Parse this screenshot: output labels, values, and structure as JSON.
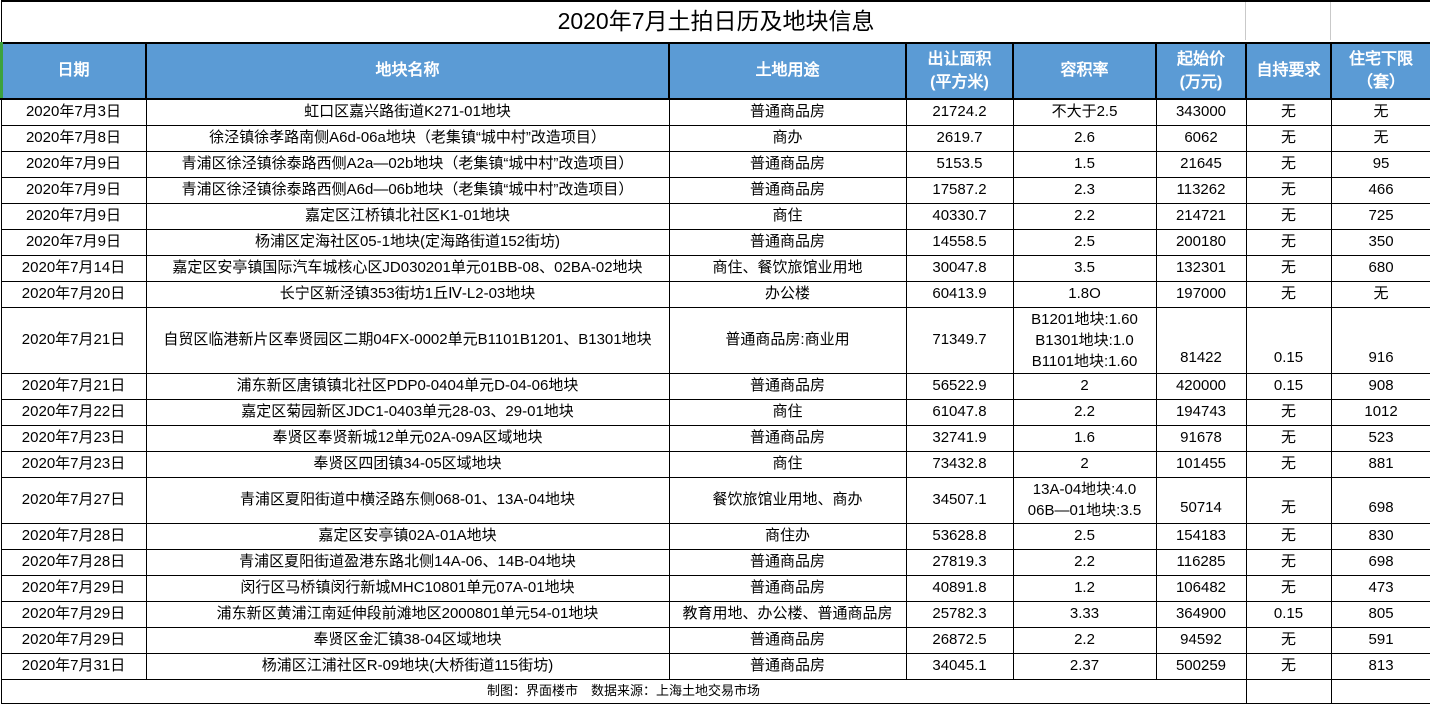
{
  "title": "2020年7月土拍日历及地块信息",
  "footer": "制图：界面楼市　数据来源：上海土地交易市场",
  "colors": {
    "header_bg": "#5B9BD5",
    "header_text": "#FFFFFF",
    "border": "#000000",
    "accent_green": "#3DA23D"
  },
  "columns": [
    {
      "label": "日期",
      "sub": ""
    },
    {
      "label": "地块名称",
      "sub": ""
    },
    {
      "label": "土地用途",
      "sub": ""
    },
    {
      "label": "出让面积",
      "sub": "(平方米)"
    },
    {
      "label": "容积率",
      "sub": ""
    },
    {
      "label": "起始价",
      "sub": "(万元)"
    },
    {
      "label": "自持要求",
      "sub": ""
    },
    {
      "label": "住宅下限",
      "sub": "（套）"
    }
  ],
  "rows": [
    {
      "date": "2020年7月3日",
      "name": "虹口区嘉兴路街道K271-01地块",
      "use": "普通商品房",
      "area": "21724.2",
      "far": "不大于2.5",
      "price": "343000",
      "self_hold": "无",
      "min_units": "无"
    },
    {
      "date": "2020年7月8日",
      "name": "徐泾镇徐孝路南侧A6d-06a地块（老集镇“城中村”改造项目）",
      "use": "商办",
      "area": "2619.7",
      "far": "2.6",
      "price": "6062",
      "self_hold": "无",
      "min_units": "无"
    },
    {
      "date": "2020年7月9日",
      "name": "青浦区徐泾镇徐泰路西侧A2a—02b地块（老集镇“城中村”改造项目）",
      "use": "普通商品房",
      "area": "5153.5",
      "far": "1.5",
      "price": "21645",
      "self_hold": "无",
      "min_units": "95"
    },
    {
      "date": "2020年7月9日",
      "name": "青浦区徐泾镇徐泰路西侧A6d—06b地块（老集镇“城中村”改造项目）",
      "use": "普通商品房",
      "area": "17587.2",
      "far": "2.3",
      "price": "113262",
      "self_hold": "无",
      "min_units": "466"
    },
    {
      "date": "2020年7月9日",
      "name": "嘉定区江桥镇北社区K1-01地块",
      "use": "商住",
      "area": "40330.7",
      "far": "2.2",
      "price": "214721",
      "self_hold": "无",
      "min_units": "725"
    },
    {
      "date": "2020年7月9日",
      "name": "杨浦区定海社区05-1地块(定海路街道152街坊)",
      "use": "普通商品房",
      "area": "14558.5",
      "far": "2.5",
      "price": "200180",
      "self_hold": "无",
      "min_units": "350"
    },
    {
      "date": "2020年7月14日",
      "name": "嘉定区安亭镇国际汽车城核心区JD030201单元01BB-08、02BA-02地块",
      "use": "商住、餐饮旅馆业用地",
      "area": "30047.8",
      "far": "3.5",
      "price": "132301",
      "self_hold": "无",
      "min_units": "680"
    },
    {
      "date": "2020年7月20日",
      "name": "长宁区新泾镇353街坊1丘Ⅳ-L2-03地块",
      "use": "办公楼",
      "area": "60413.9",
      "far": "1.8O",
      "price": "197000",
      "self_hold": "无",
      "min_units": "无"
    },
    {
      "date": "2020年7月21日",
      "name": "自贸区临港新片区奉贤园区二期04FX-0002单元B1101B1201、B1301地块",
      "use": "普通商品房:商业用",
      "area": "71349.7",
      "far": [
        "B1201地块:1.60",
        "B1301地块:1.0",
        "B1101地块:1.60"
      ],
      "price": "81422",
      "self_hold": "0.15",
      "min_units": "916"
    },
    {
      "date": "2020年7月21日",
      "name": "浦东新区唐镇镇北社区PDP0-0404单元D-04-06地块",
      "use": "普通商品房",
      "area": "56522.9",
      "far": "2",
      "price": "420000",
      "self_hold": "0.15",
      "min_units": "908"
    },
    {
      "date": "2020年7月22日",
      "name": "嘉定区菊园新区JDC1-0403单元28-03、29-01地块",
      "use": "商住",
      "area": "61047.8",
      "far": "2.2",
      "price": "194743",
      "self_hold": "无",
      "min_units": "1012"
    },
    {
      "date": "2020年7月23日",
      "name": "奉贤区奉贤新城12单元02A-09A区域地块",
      "use": "普通商品房",
      "area": "32741.9",
      "far": "1.6",
      "price": "91678",
      "self_hold": "无",
      "min_units": "523"
    },
    {
      "date": "2020年7月23日",
      "name": "奉贤区四团镇34-05区域地块",
      "use": "商住",
      "area": "73432.8",
      "far": "2",
      "price": "101455",
      "self_hold": "无",
      "min_units": "881"
    },
    {
      "date": "2020年7月27日",
      "name": "青浦区夏阳街道中横泾路东侧068-01、13A-04地块",
      "use": "餐饮旅馆业用地、商办",
      "area": "34507.1",
      "far": [
        "13A-04地块:4.0",
        "06B—01地块:3.5"
      ],
      "price": "50714",
      "self_hold": "无",
      "min_units": "698"
    },
    {
      "date": "2020年7月28日",
      "name": "嘉定区安亭镇02A-01A地块",
      "use": "商住办",
      "area": "53628.8",
      "far": "2.5",
      "price": "154183",
      "self_hold": "无",
      "min_units": "830"
    },
    {
      "date": "2020年7月28日",
      "name": "青浦区夏阳街道盈港东路北侧14A-06、14B-04地块",
      "use": "普通商品房",
      "area": "27819.3",
      "far": "2.2",
      "price": "116285",
      "self_hold": "无",
      "min_units": "698"
    },
    {
      "date": "2020年7月29日",
      "name": "闵行区马桥镇闵行新城MHC10801单元07A-01地块",
      "use": "普通商品房",
      "area": "40891.8",
      "far": "1.2",
      "price": "106482",
      "self_hold": "无",
      "min_units": "473"
    },
    {
      "date": "2020年7月29日",
      "name": "浦东新区黄浦江南延伸段前滩地区2000801单元54-01地块",
      "use": "教育用地、办公楼、普通商品房",
      "area": "25782.3",
      "far": "3.33",
      "price": "364900",
      "self_hold": "0.15",
      "min_units": "805"
    },
    {
      "date": "2020年7月29日",
      "name": "奉贤区金汇镇38-04区域地块",
      "use": "普通商品房",
      "area": "26872.5",
      "far": "2.2",
      "price": "94592",
      "self_hold": "无",
      "min_units": "591"
    },
    {
      "date": "2020年7月31日",
      "name": "杨浦区江浦社区R-09地块(大桥街道115街坊)",
      "use": "普通商品房",
      "area": "34045.1",
      "far": "2.37",
      "price": "500259",
      "self_hold": "无",
      "min_units": "813"
    }
  ]
}
